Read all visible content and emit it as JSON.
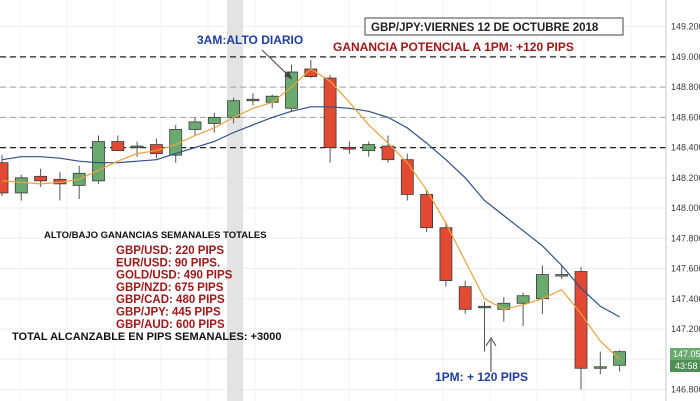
{
  "annotations": {
    "title_box": "GBP/JPY:VIERNES 12 DE OCTUBRE 2018",
    "potential": "GANANCIA POTENCIAL A 1PM: +120 PIPS",
    "high_label": "3AM:ALTO DIARIO",
    "pm_label": "1PM: + 120 PIPS"
  },
  "weekly": {
    "title": "ALTO/BAJO GANANCIAS SEMANALES TOTALES",
    "items": [
      "GBP/USD: 220 PIPS",
      "EUR/USD: 90 PIPS.",
      "GOLD/USD: 490 PIPS",
      "GBP/NZD: 675 PIPS",
      "GBP/CAD: 480 PIPS",
      "GBP/JPY: 445 PIPS",
      "GBP/AUD: 600 PIPS"
    ],
    "total": "TOTAL ALCANZABLE EN PIPS SEMANALES: +3000"
  },
  "price_tag": {
    "price": "147.055",
    "timer": "43:58"
  },
  "chart_data": {
    "type": "candlestick",
    "y_ticks": [
      146.8,
      147.0,
      147.2,
      147.4,
      147.6,
      147.8,
      148.0,
      148.2,
      148.4,
      148.6,
      148.8,
      149.0,
      149.2
    ],
    "ylim": [
      146.75,
      149.35
    ],
    "levels_dashed_black": [
      149.0,
      148.4
    ],
    "levels_dashed_gray": [
      148.8,
      148.6
    ],
    "colors": {
      "bull": "#6aaa6e",
      "bear": "#e24a33",
      "sma_fast": "#e8a33c",
      "sma_slow": "#2f4f8a",
      "highlight": "#e3e3e3"
    },
    "candles": [
      {
        "o": 148.3,
        "h": 148.35,
        "l": 148.08,
        "c": 148.1
      },
      {
        "o": 148.1,
        "h": 148.22,
        "l": 148.05,
        "c": 148.2
      },
      {
        "o": 148.21,
        "h": 148.26,
        "l": 148.14,
        "c": 148.18
      },
      {
        "o": 148.19,
        "h": 148.24,
        "l": 148.05,
        "c": 148.16
      },
      {
        "o": 148.15,
        "h": 148.28,
        "l": 148.06,
        "c": 148.23
      },
      {
        "o": 148.18,
        "h": 148.48,
        "l": 148.16,
        "c": 148.44
      },
      {
        "o": 148.44,
        "h": 148.48,
        "l": 148.38,
        "c": 148.38
      },
      {
        "o": 148.4,
        "h": 148.44,
        "l": 148.34,
        "c": 148.41
      },
      {
        "o": 148.42,
        "h": 148.46,
        "l": 148.33,
        "c": 148.36
      },
      {
        "o": 148.35,
        "h": 148.55,
        "l": 148.3,
        "c": 148.52
      },
      {
        "o": 148.52,
        "h": 148.6,
        "l": 148.48,
        "c": 148.57
      },
      {
        "o": 148.56,
        "h": 148.63,
        "l": 148.5,
        "c": 148.6
      },
      {
        "o": 148.6,
        "h": 148.73,
        "l": 148.56,
        "c": 148.71
      },
      {
        "o": 148.72,
        "h": 148.76,
        "l": 148.68,
        "c": 148.72
      },
      {
        "o": 148.7,
        "h": 148.75,
        "l": 148.66,
        "c": 148.74
      },
      {
        "o": 148.66,
        "h": 148.95,
        "l": 148.64,
        "c": 148.9
      },
      {
        "o": 148.92,
        "h": 148.98,
        "l": 148.86,
        "c": 148.87
      },
      {
        "o": 148.86,
        "h": 148.88,
        "l": 148.3,
        "c": 148.4
      },
      {
        "o": 148.4,
        "h": 148.44,
        "l": 148.36,
        "c": 148.39
      },
      {
        "o": 148.38,
        "h": 148.44,
        "l": 148.34,
        "c": 148.42
      },
      {
        "o": 148.41,
        "h": 148.48,
        "l": 148.3,
        "c": 148.32
      },
      {
        "o": 148.32,
        "h": 148.36,
        "l": 148.05,
        "c": 148.09
      },
      {
        "o": 148.09,
        "h": 148.12,
        "l": 147.84,
        "c": 147.87
      },
      {
        "o": 147.87,
        "h": 147.91,
        "l": 147.48,
        "c": 147.52
      },
      {
        "o": 147.48,
        "h": 147.52,
        "l": 147.3,
        "c": 147.33
      },
      {
        "o": 147.35,
        "h": 147.38,
        "l": 147.05,
        "c": 147.35
      },
      {
        "o": 147.33,
        "h": 147.41,
        "l": 147.25,
        "c": 147.37
      },
      {
        "o": 147.37,
        "h": 147.44,
        "l": 147.22,
        "c": 147.42
      },
      {
        "o": 147.4,
        "h": 147.62,
        "l": 147.3,
        "c": 147.56
      },
      {
        "o": 147.56,
        "h": 147.62,
        "l": 147.53,
        "c": 147.56
      },
      {
        "o": 147.58,
        "h": 147.61,
        "l": 146.8,
        "c": 146.94
      },
      {
        "o": 146.95,
        "h": 147.05,
        "l": 146.9,
        "c": 146.95
      },
      {
        "o": 146.96,
        "h": 147.06,
        "l": 146.92,
        "c": 147.05
      }
    ],
    "sma_fast": [
      148.18,
      148.17,
      148.16,
      148.17,
      148.19,
      148.25,
      148.31,
      148.36,
      148.38,
      148.42,
      148.48,
      148.53,
      148.6,
      148.66,
      148.7,
      148.8,
      148.92,
      148.84,
      148.7,
      148.55,
      148.43,
      148.3,
      148.12,
      147.9,
      147.65,
      147.4,
      147.33,
      147.36,
      147.4,
      147.46,
      147.3,
      147.12,
      147.0
    ],
    "sma_slow": [
      148.32,
      148.34,
      148.34,
      148.33,
      148.31,
      148.3,
      148.3,
      148.31,
      148.32,
      148.36,
      148.4,
      148.44,
      148.5,
      148.55,
      148.6,
      148.64,
      148.67,
      148.67,
      148.66,
      148.64,
      148.6,
      148.53,
      148.43,
      148.32,
      148.2,
      148.05,
      147.95,
      147.85,
      147.75,
      147.62,
      147.47,
      147.35,
      147.28
    ]
  }
}
